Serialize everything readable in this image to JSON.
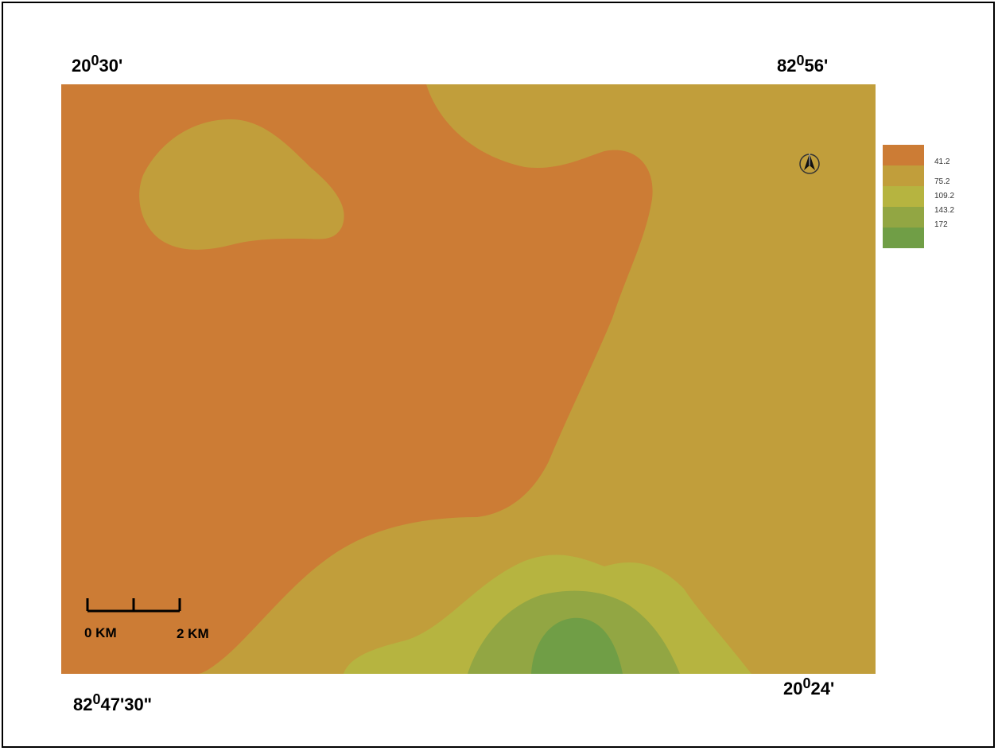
{
  "coordinates": {
    "top_left": {
      "deg": "20",
      "sup": "0",
      "min": "30'"
    },
    "top_right": {
      "deg": "82",
      "sup": "0",
      "min": "56'"
    },
    "bottom_left": {
      "deg": "82",
      "sup": "0",
      "min": "47'30\""
    },
    "bottom_right": {
      "deg": "20",
      "sup": "0",
      "min": "24'"
    }
  },
  "legend": {
    "entries": [
      {
        "label": "41.2",
        "color": "#CC7C35"
      },
      {
        "label": "75.2",
        "color": "#C19E3B"
      },
      {
        "label": "109.2",
        "color": "#B6B440"
      },
      {
        "label": "143.2",
        "color": "#92A643"
      },
      {
        "label": "172",
        "color": "#709E46"
      }
    ]
  },
  "scale_bar": {
    "left_label": "0 KM",
    "right_label": "2 KM"
  },
  "north_arrow": "north-arrow-icon"
}
